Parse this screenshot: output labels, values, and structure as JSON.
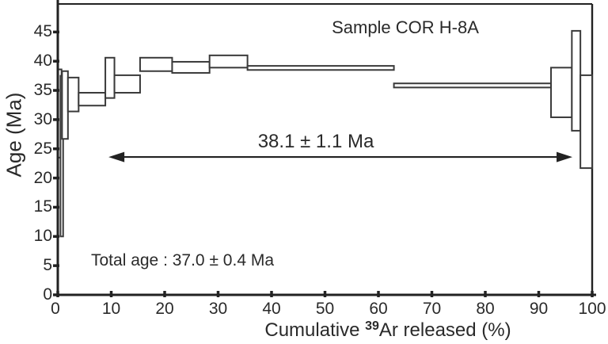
{
  "chart_data": {
    "type": "bar",
    "variant": "argon-step-heating-age-spectrum (floating error boxes)",
    "title": "Sample COR H-8A",
    "xlabel_prefix": "Cumulative ",
    "xlabel_isotope": "39",
    "xlabel_suffix": "Ar released (%)",
    "xlabel_full": "Cumulative ³⁹Ar released (%)",
    "ylabel": "Age (Ma)",
    "xlim": [
      0,
      100
    ],
    "ylim": [
      0,
      49.8
    ],
    "x_ticks": [
      0,
      10,
      20,
      30,
      40,
      50,
      60,
      70,
      80,
      90,
      100
    ],
    "y_ticks": [
      0,
      5,
      10,
      15,
      20,
      25,
      30,
      35,
      40,
      45
    ],
    "grid": false,
    "legend": "none",
    "plateau_age_label": "38.1 ± 1.1 Ma",
    "plateau_arrow": {
      "x_start_pct": 9.5,
      "x_end_pct": 96.3,
      "age": 23.6
    },
    "total_age_label": "Total age : 37.0 ± 0.4 Ma",
    "steps": [
      {
        "x0": 0.0,
        "x1": 0.7,
        "age_min": 23.5,
        "age_max": 38.6
      },
      {
        "x0": 0.5,
        "x1": 1.0,
        "age_min": 10.0,
        "age_max": 37.5
      },
      {
        "x0": 0.8,
        "x1": 1.9,
        "age_min": 26.7,
        "age_max": 38.3
      },
      {
        "x0": 1.9,
        "x1": 3.9,
        "age_min": 31.4,
        "age_max": 37.2
      },
      {
        "x0": 3.9,
        "x1": 8.9,
        "age_min": 32.4,
        "age_max": 34.6
      },
      {
        "x0": 8.9,
        "x1": 10.6,
        "age_min": 33.7,
        "age_max": 40.6
      },
      {
        "x0": 10.6,
        "x1": 15.4,
        "age_min": 34.6,
        "age_max": 37.6
      },
      {
        "x0": 15.4,
        "x1": 21.4,
        "age_min": 38.3,
        "age_max": 40.6
      },
      {
        "x0": 21.4,
        "x1": 28.4,
        "age_min": 38.0,
        "age_max": 39.9
      },
      {
        "x0": 28.4,
        "x1": 35.5,
        "age_min": 38.9,
        "age_max": 41.0
      },
      {
        "x0": 35.5,
        "x1": 62.9,
        "age_min": 38.5,
        "age_max": 39.2
      },
      {
        "x0": 62.9,
        "x1": 92.3,
        "age_min": 35.5,
        "age_max": 36.2
      },
      {
        "x0": 92.3,
        "x1": 96.2,
        "age_min": 30.4,
        "age_max": 38.9
      },
      {
        "x0": 96.2,
        "x1": 97.8,
        "age_min": 28.1,
        "age_max": 45.2
      },
      {
        "x0": 97.8,
        "x1": 100.0,
        "age_min": 21.7,
        "age_max": 37.6
      }
    ]
  }
}
